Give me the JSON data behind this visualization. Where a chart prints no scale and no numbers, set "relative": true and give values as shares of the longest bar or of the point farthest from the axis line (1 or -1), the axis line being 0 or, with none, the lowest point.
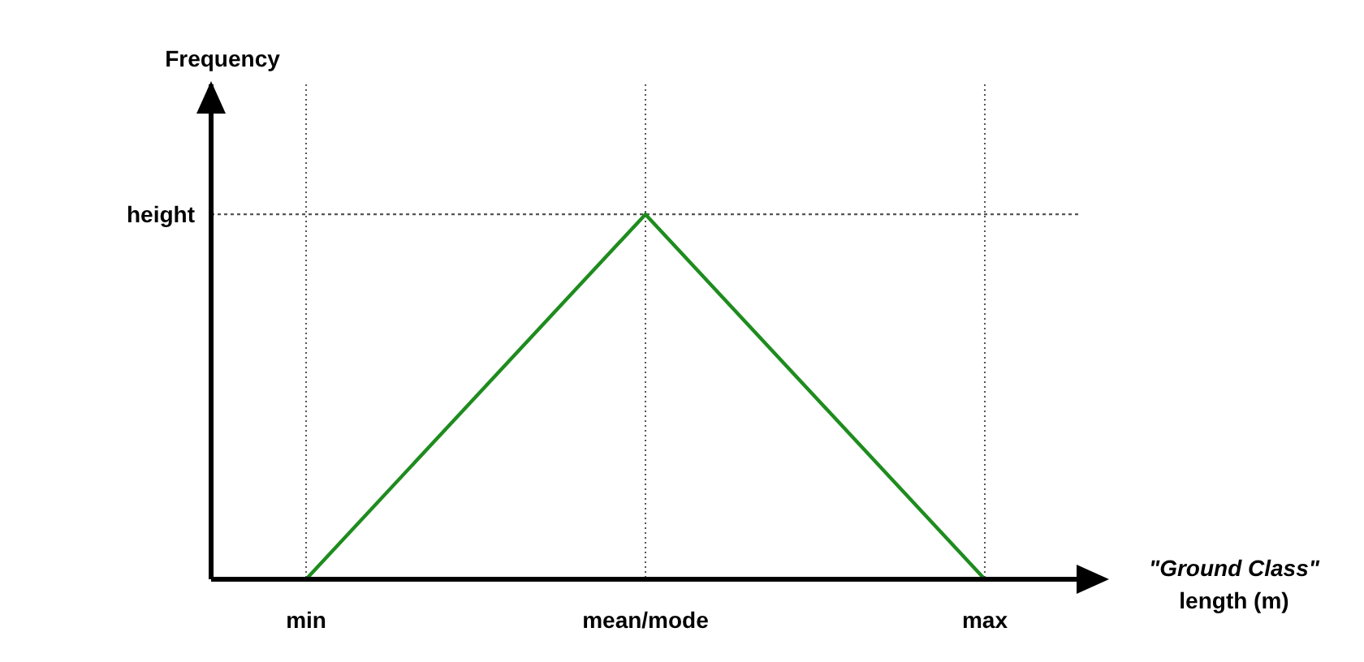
{
  "chart_data": {
    "type": "line",
    "relative": true,
    "annotations": [
      "Frequency"
    ],
    "xlabel": "\"Ground Class\" length (m)",
    "categories": [
      "min",
      "mean/mode",
      "max"
    ],
    "series": [
      {
        "color": "#1e8c1e",
        "values": [
          0,
          1,
          0
        ]
      }
    ],
    "grid": "x",
    "marker": "none",
    "line_style": "solid",
    "legend": false,
    "ref_lines": [
      {
        "axis": "y",
        "value": 1,
        "label": "height",
        "line_style": "dotted",
        "color": "#555555"
      }
    ]
  }
}
